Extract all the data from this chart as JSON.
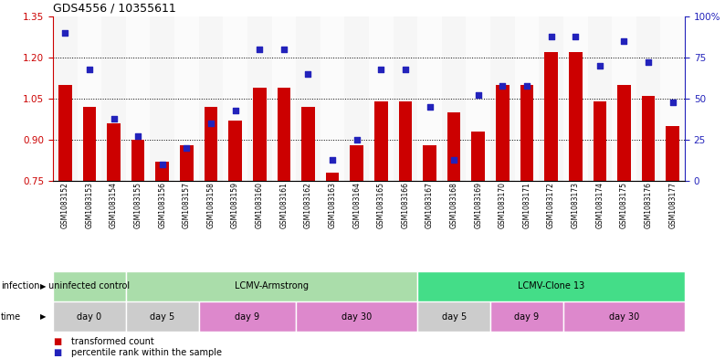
{
  "title": "GDS4556 / 10355611",
  "samples": [
    "GSM1083152",
    "GSM1083153",
    "GSM1083154",
    "GSM1083155",
    "GSM1083156",
    "GSM1083157",
    "GSM1083158",
    "GSM1083159",
    "GSM1083160",
    "GSM1083161",
    "GSM1083162",
    "GSM1083163",
    "GSM1083164",
    "GSM1083165",
    "GSM1083166",
    "GSM1083167",
    "GSM1083168",
    "GSM1083169",
    "GSM1083170",
    "GSM1083171",
    "GSM1083172",
    "GSM1083173",
    "GSM1083174",
    "GSM1083175",
    "GSM1083176",
    "GSM1083177"
  ],
  "bar_values": [
    1.1,
    1.02,
    0.96,
    0.9,
    0.82,
    0.88,
    1.02,
    0.97,
    1.09,
    1.09,
    1.02,
    0.78,
    0.88,
    1.04,
    1.04,
    0.88,
    1.0,
    0.93,
    1.1,
    1.1,
    1.22,
    1.22,
    1.04,
    1.1,
    1.06,
    0.95
  ],
  "dot_values": [
    90,
    68,
    38,
    27,
    10,
    20,
    35,
    43,
    80,
    80,
    65,
    13,
    25,
    68,
    68,
    45,
    13,
    52,
    58,
    58,
    88,
    88,
    70,
    85,
    72,
    48
  ],
  "bar_color": "#cc0000",
  "dot_color": "#2222bb",
  "left_ylim": [
    0.75,
    1.35
  ],
  "left_yticks": [
    0.75,
    0.9,
    1.05,
    1.2,
    1.35
  ],
  "right_ylim": [
    0,
    100
  ],
  "right_yticks": [
    0,
    25,
    50,
    75,
    100
  ],
  "right_yticklabels": [
    "0",
    "25",
    "50",
    "75",
    "100%"
  ],
  "hgrid_values": [
    0.9,
    1.05,
    1.2
  ],
  "infection_groups": [
    {
      "label": "uninfected control",
      "start": 0,
      "end": 3,
      "color": "#aaddaa"
    },
    {
      "label": "LCMV-Armstrong",
      "start": 3,
      "end": 15,
      "color": "#aaddaa"
    },
    {
      "label": "LCMV-Clone 13",
      "start": 15,
      "end": 26,
      "color": "#44dd88"
    }
  ],
  "time_groups": [
    {
      "label": "day 0",
      "start": 0,
      "end": 3,
      "color": "#cccccc"
    },
    {
      "label": "day 5",
      "start": 3,
      "end": 6,
      "color": "#cccccc"
    },
    {
      "label": "day 9",
      "start": 6,
      "end": 10,
      "color": "#dd88cc"
    },
    {
      "label": "day 30",
      "start": 10,
      "end": 15,
      "color": "#dd88cc"
    },
    {
      "label": "day 5",
      "start": 15,
      "end": 18,
      "color": "#cccccc"
    },
    {
      "label": "day 9",
      "start": 18,
      "end": 21,
      "color": "#dd88cc"
    },
    {
      "label": "day 30",
      "start": 21,
      "end": 26,
      "color": "#dd88cc"
    }
  ],
  "legend_bar_label": "transformed count",
  "legend_dot_label": "percentile rank within the sample",
  "fig_width": 7.94,
  "fig_height": 3.93,
  "fig_dpi": 100
}
